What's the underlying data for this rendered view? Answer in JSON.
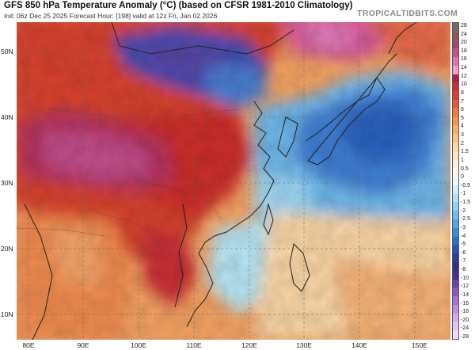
{
  "header": {
    "title": "GFS 850 hPa Temperature Anomaly (°C) (based on CFSR 1981-2010 Climatology)",
    "subtitle": "Init: 06z Dec 25 2025   Forecast Hour: [198]   valid at 12z Fri, Jan 02 2026",
    "brand": "TROPICALTIDBITS.COM"
  },
  "axes": {
    "lat_labels": [
      "50N",
      "40N",
      "30N",
      "20N",
      "10N"
    ],
    "lon_labels": [
      "80E",
      "90E",
      "100E",
      "110E",
      "120E",
      "130E",
      "140E",
      "150E"
    ]
  },
  "colorbar": {
    "labels": [
      "28",
      "24",
      "20",
      "18",
      "16",
      "14",
      "12",
      "10",
      "8",
      "7",
      "6",
      "5",
      "4",
      "3",
      "2",
      "1.5",
      "1",
      "0.5",
      "0",
      "-0.5",
      "-1",
      "-1.5",
      "-2",
      "-2.5",
      "-3",
      "-4",
      "-5",
      "-6",
      "-7",
      "-8",
      "-10",
      "-12",
      "-14",
      "-16",
      "-18",
      "-20",
      "-24",
      "-28"
    ],
    "colors": [
      "#6e6e6e",
      "#8c5a5a",
      "#a04a70",
      "#c8508c",
      "#e070b0",
      "#f0a0d0",
      "#b02040",
      "#c83040",
      "#dc4035",
      "#ea5a38",
      "#f27a45",
      "#f6954f",
      "#f8ae66",
      "#f9c483",
      "#fbd8a3",
      "#fce6bf",
      "#fdf0d8",
      "#fef8ec",
      "#eaf8fc",
      "#cdeffa",
      "#afe2f7",
      "#8fd1f3",
      "#6ebdee",
      "#4fa6e6",
      "#3a8ddb",
      "#2c70cc",
      "#2455b8",
      "#2a3ea2",
      "#33308a",
      "#4a2f90",
      "#6a3fae",
      "#8b55c4",
      "#a86fd6",
      "#c08de2",
      "#d4aaec",
      "#e2c4f2",
      "#eedaf7"
    ]
  }
}
